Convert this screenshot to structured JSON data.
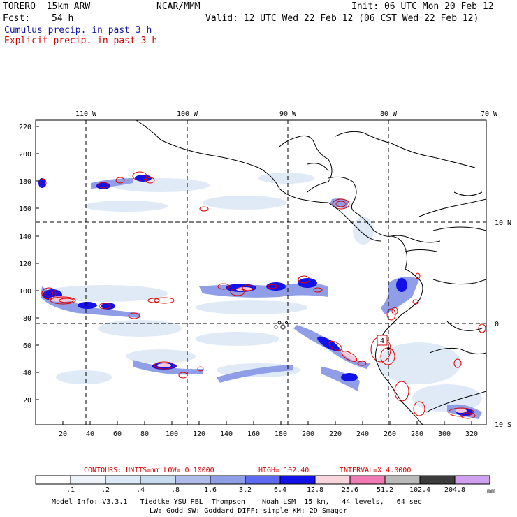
{
  "header": {
    "model": "TORERO  15km ARW",
    "org": "NCAR/MMM",
    "init": "Init: 06 UTC Mon 20 Feb 12",
    "fcst_label": "Fcst:",
    "fcst_value": "54 h",
    "valid": "Valid: 12 UTC Wed 22 Feb 12 (06 CST Wed 22 Feb 12)",
    "legend_cumulus": "Cumulus precip. in past 3 h",
    "legend_explicit": "Explicit precip. in past 3 h"
  },
  "map": {
    "lon_labels": [
      "110 W",
      "100 W",
      "90 W",
      "80 W",
      "70 W"
    ],
    "lat_labels": [
      "10 N",
      "0",
      "10 S"
    ],
    "y_ticks": [
      "220",
      "200",
      "180",
      "160",
      "140",
      "120",
      "100",
      "80",
      "60",
      "40",
      "20"
    ],
    "x_ticks": [
      "20",
      "40",
      "60",
      "80",
      "100",
      "120",
      "140",
      "160",
      "180",
      "200",
      "220",
      "240",
      "260",
      "280",
      "300",
      "320"
    ],
    "marker": "4"
  },
  "contours": {
    "units": "CONTOURS:  UNITS=mm  LOW= 0.10000",
    "high": "HIGH=  102.40",
    "interval": "INTERVAL=X  4.0000"
  },
  "colorbar": {
    "labels": [
      ".1",
      ".2",
      ".4",
      ".8",
      "1.6",
      "3.2",
      "6.4",
      "12.8",
      "25.6",
      "51.2",
      "102.4",
      "204.8"
    ],
    "unit": "mm",
    "colors": [
      "#ffffff",
      "#eef3fb",
      "#dde9f6",
      "#c8dcf1",
      "#aebde9",
      "#8f9ee6",
      "#5f6af0",
      "#1212e8",
      "#f8d4dc",
      "#f07ab4",
      "#b9b9b9",
      "#3c3c3c",
      "#d0a0f0"
    ]
  },
  "footer": {
    "line1": "Model Info: V3.3.1   Tiedtke YSU PBL  Thompson    Noah LSM  15 km,   44 levels,   64 sec",
    "line2": "LW: Godd SW: Goddard DIFF: simple KM: 2D Smagor"
  }
}
